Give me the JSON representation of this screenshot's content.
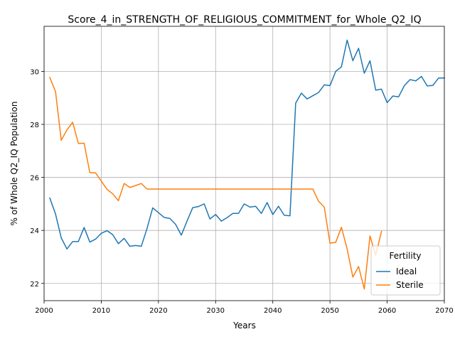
{
  "chart_data": {
    "type": "line",
    "title": "Score_4_in_STRENGTH_OF_RELIGIOUS_COMMITMENT_for_Whole_Q2_IQ",
    "xlabel": "Years",
    "ylabel": "% of Whole Q2_IQ Population",
    "xlim": [
      2000,
      2070
    ],
    "ylim": [
      21.35,
      31.7
    ],
    "xticks": [
      2000,
      2010,
      2020,
      2030,
      2040,
      2050,
      2060,
      2070
    ],
    "yticks": [
      22,
      24,
      26,
      28,
      30
    ],
    "grid": true,
    "legend": {
      "title": "Fertility",
      "placement": "lower right"
    },
    "series": [
      {
        "name": "Ideal",
        "color": "#1f77b4",
        "x": [
          2001,
          2002,
          2003,
          2004,
          2005,
          2006,
          2007,
          2008,
          2009,
          2010,
          2011,
          2012,
          2013,
          2014,
          2015,
          2016,
          2017,
          2018,
          2019,
          2020,
          2021,
          2022,
          2023,
          2024,
          2025,
          2026,
          2027,
          2028,
          2029,
          2030,
          2031,
          2032,
          2033,
          2034,
          2035,
          2036,
          2037,
          2038,
          2039,
          2040,
          2041,
          2042,
          2043,
          2044,
          2045,
          2046,
          2047,
          2048,
          2049,
          2050,
          2051,
          2052,
          2053,
          2054,
          2055,
          2056,
          2057,
          2058,
          2059,
          2060,
          2061,
          2062,
          2063,
          2064,
          2065,
          2066,
          2067,
          2068,
          2069,
          2070
        ],
        "values": [
          25.22,
          24.62,
          23.72,
          23.3,
          23.58,
          23.58,
          24.11,
          23.56,
          23.67,
          23.89,
          23.99,
          23.84,
          23.5,
          23.7,
          23.4,
          23.43,
          23.4,
          24.07,
          24.85,
          24.67,
          24.49,
          24.45,
          24.23,
          23.82,
          24.35,
          24.86,
          24.9,
          25.0,
          24.43,
          24.6,
          24.35,
          24.48,
          24.64,
          24.64,
          25.0,
          24.88,
          24.91,
          24.64,
          25.05,
          24.6,
          24.91,
          24.57,
          24.55,
          28.8,
          29.18,
          28.96,
          29.08,
          29.2,
          29.49,
          29.46,
          30.0,
          30.17,
          31.18,
          30.4,
          30.87,
          29.93,
          30.4,
          29.29,
          29.33,
          28.82,
          29.07,
          29.04,
          29.46,
          29.69,
          29.64,
          29.81,
          29.45,
          29.47,
          29.75,
          29.75
        ]
      },
      {
        "name": "Sterile",
        "color": "#ff7f0e",
        "x": [
          2001,
          2002,
          2003,
          2004,
          2005,
          2006,
          2007,
          2008,
          2009,
          2010,
          2011,
          2012,
          2013,
          2014,
          2015,
          2016,
          2017,
          2018,
          2019,
          2020,
          2021,
          2022,
          2023,
          2024,
          2025,
          2026,
          2027,
          2028,
          2029,
          2030,
          2031,
          2032,
          2033,
          2034,
          2035,
          2036,
          2037,
          2038,
          2039,
          2040,
          2041,
          2042,
          2043,
          2044,
          2045,
          2046,
          2047,
          2048,
          2049,
          2050,
          2051,
          2052,
          2053,
          2054,
          2055,
          2056,
          2057,
          2058,
          2059
        ],
        "values": [
          29.77,
          29.24,
          27.4,
          27.79,
          28.08,
          27.28,
          27.29,
          26.18,
          26.17,
          25.86,
          25.55,
          25.38,
          25.12,
          25.77,
          25.62,
          25.69,
          25.77,
          25.56,
          25.56,
          25.56,
          25.56,
          25.56,
          25.56,
          25.56,
          25.56,
          25.56,
          25.56,
          25.56,
          25.56,
          25.56,
          25.56,
          25.56,
          25.56,
          25.56,
          25.56,
          25.56,
          25.56,
          25.56,
          25.56,
          25.56,
          25.56,
          25.56,
          25.56,
          25.56,
          25.56,
          25.56,
          25.56,
          25.1,
          24.88,
          23.52,
          23.55,
          24.12,
          23.3,
          22.24,
          22.64,
          21.79,
          23.79,
          23.06,
          23.96
        ]
      }
    ]
  }
}
